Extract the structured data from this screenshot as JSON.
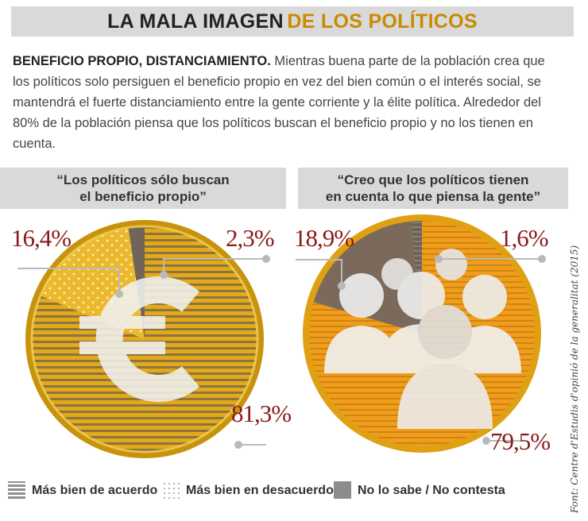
{
  "title": {
    "part1": "LA MALA IMAGEN",
    "part2": "DE LOS POLÍTICOS"
  },
  "intro": {
    "lead": "BENEFICIO PROPIO, DISTANCIAMIENTO.",
    "body": "Mientras buena parte de la población crea que los políticos solo persiguen el beneficio propio en vez del bien común o el interés social, se mantendrá el fuerte distanciamiento entre la gente corriente y la élite política. Alrededor del 80% de la población piensa que los políticos buscan el beneficio propio y no los tienen en cuenta."
  },
  "charts": [
    {
      "question_line1": "“Los políticos sólo buscan",
      "question_line2": "el beneficio propio”",
      "labels": {
        "desacuerdo": "16,4%",
        "no_sabe": "2,3%",
        "acuerdo": "81,3%"
      },
      "icon": "euro-coin-icon"
    },
    {
      "question_line1": "“Creo que los políticos tienen",
      "question_line2": "en cuenta lo que piensa la gente”",
      "labels": {
        "desacuerdo": "18,9%",
        "no_sabe": "1,6%",
        "acuerdo": "79,5%"
      },
      "icon": "people-group-icon"
    }
  ],
  "legend": {
    "acuerdo": "Más bien de acuerdo",
    "desacuerdo": "Más bien en desacuerdo",
    "no_sabe": "No lo sabe / No contesta"
  },
  "source": "Font: Centre d'Estudis d'opinió de la generalitat (2015)",
  "colors": {
    "gold": "#e3ad1f",
    "orange": "#ef9d1a",
    "brown": "#7b6a5c",
    "red": "#8b1a1a"
  },
  "chart_data": [
    {
      "type": "pie",
      "title": "“Los políticos sólo buscan el beneficio propio”",
      "categories": [
        "Más bien de acuerdo",
        "Más bien en desacuerdo",
        "No lo sabe / No contesta"
      ],
      "values": [
        81.3,
        16.4,
        2.3
      ],
      "legend": "bottom"
    },
    {
      "type": "pie",
      "title": "“Creo que los políticos tienen en cuenta lo que piensa la gente”",
      "categories": [
        "Más bien de acuerdo",
        "Más bien en desacuerdo",
        "No lo sabe / No contesta"
      ],
      "values": [
        79.5,
        18.9,
        1.6
      ],
      "legend": "bottom"
    }
  ]
}
